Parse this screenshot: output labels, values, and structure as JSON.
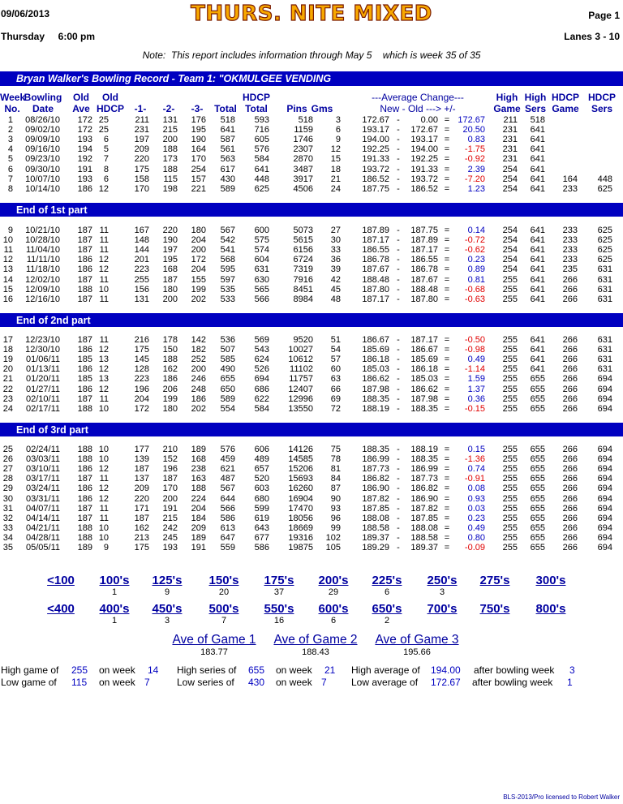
{
  "header": {
    "date": "09/06/2013",
    "title": "THURS. NITE MIXED",
    "page": "Page 1",
    "day_time": "Thursday     6:00 pm",
    "lanes": "Lanes 3 - 10"
  },
  "note": "Note:  This report includes information through May 5    which is week 35 of 35",
  "record_title": "Bryan Walker's Bowling Record  - Team 1: \"OKMULGEE VENDING",
  "columns": {
    "week": "Week",
    "no": "No.",
    "bowling": "Bowling",
    "date": "Date",
    "old1": "Old",
    "ave": "Ave",
    "old2": "Old",
    "hdcp": "HDCP",
    "g1": "-1-",
    "g2": "-2-",
    "g3": "-3-",
    "total": "Total",
    "hdcp_total_1": "HDCP",
    "hdcp_total_2": "Total",
    "pins": "Pins",
    "gms": "Gms",
    "avg_change_1": "---Average Change---",
    "avg_change_2": "New - Old ---> +/-",
    "high_game_1": "High",
    "high_game_2": "Game",
    "high_sers_1": "High",
    "high_sers_2": "Sers",
    "hdcp_game_1": "HDCP",
    "hdcp_game_2": "Game",
    "hdcp_sers_1": "HDCP",
    "hdcp_sers_2": "Sers"
  },
  "part_labels": [
    "End of 1st part",
    "End of 2nd part",
    "End of 3rd part"
  ],
  "rows": [
    [
      "1",
      "08/26/10",
      "172",
      "25",
      "211",
      "131",
      "176",
      "518",
      "593",
      "518",
      "3",
      "172.67",
      "-",
      "0.00",
      "=",
      "172.67",
      "211",
      "518",
      "",
      ""
    ],
    [
      "2",
      "09/02/10",
      "172",
      "25",
      "231",
      "215",
      "195",
      "641",
      "716",
      "1159",
      "6",
      "193.17",
      "-",
      "172.67",
      "=",
      "20.50",
      "231",
      "641",
      "",
      ""
    ],
    [
      "3",
      "09/09/10",
      "193",
      "6",
      "197",
      "200",
      "190",
      "587",
      "605",
      "1746",
      "9",
      "194.00",
      "-",
      "193.17",
      "=",
      "0.83",
      "231",
      "641",
      "",
      ""
    ],
    [
      "4",
      "09/16/10",
      "194",
      "5",
      "209",
      "188",
      "164",
      "561",
      "576",
      "2307",
      "12",
      "192.25",
      "-",
      "194.00",
      "=",
      "-1.75",
      "231",
      "641",
      "",
      ""
    ],
    [
      "5",
      "09/23/10",
      "192",
      "7",
      "220",
      "173",
      "170",
      "563",
      "584",
      "2870",
      "15",
      "191.33",
      "-",
      "192.25",
      "=",
      "-0.92",
      "231",
      "641",
      "",
      ""
    ],
    [
      "6",
      "09/30/10",
      "191",
      "8",
      "175",
      "188",
      "254",
      "617",
      "641",
      "3487",
      "18",
      "193.72",
      "-",
      "191.33",
      "=",
      "2.39",
      "254",
      "641",
      "",
      ""
    ],
    [
      "7",
      "10/07/10",
      "193",
      "6",
      "158",
      "115",
      "157",
      "430",
      "448",
      "3917",
      "21",
      "186.52",
      "-",
      "193.72",
      "=",
      "-7.20",
      "254",
      "641",
      "164",
      "448"
    ],
    [
      "8",
      "10/14/10",
      "186",
      "12",
      "170",
      "198",
      "221",
      "589",
      "625",
      "4506",
      "24",
      "187.75",
      "-",
      "186.52",
      "=",
      "1.23",
      "254",
      "641",
      "233",
      "625"
    ],
    [
      "9",
      "10/21/10",
      "187",
      "11",
      "167",
      "220",
      "180",
      "567",
      "600",
      "5073",
      "27",
      "187.89",
      "-",
      "187.75",
      "=",
      "0.14",
      "254",
      "641",
      "233",
      "625"
    ],
    [
      "10",
      "10/28/10",
      "187",
      "11",
      "148",
      "190",
      "204",
      "542",
      "575",
      "5615",
      "30",
      "187.17",
      "-",
      "187.89",
      "=",
      "-0.72",
      "254",
      "641",
      "233",
      "625"
    ],
    [
      "11",
      "11/04/10",
      "187",
      "11",
      "144",
      "197",
      "200",
      "541",
      "574",
      "6156",
      "33",
      "186.55",
      "-",
      "187.17",
      "=",
      "-0.62",
      "254",
      "641",
      "233",
      "625"
    ],
    [
      "12",
      "11/11/10",
      "186",
      "12",
      "201",
      "195",
      "172",
      "568",
      "604",
      "6724",
      "36",
      "186.78",
      "-",
      "186.55",
      "=",
      "0.23",
      "254",
      "641",
      "233",
      "625"
    ],
    [
      "13",
      "11/18/10",
      "186",
      "12",
      "223",
      "168",
      "204",
      "595",
      "631",
      "7319",
      "39",
      "187.67",
      "-",
      "186.78",
      "=",
      "0.89",
      "254",
      "641",
      "235",
      "631"
    ],
    [
      "14",
      "12/02/10",
      "187",
      "11",
      "255",
      "187",
      "155",
      "597",
      "630",
      "7916",
      "42",
      "188.48",
      "-",
      "187.67",
      "=",
      "0.81",
      "255",
      "641",
      "266",
      "631"
    ],
    [
      "15",
      "12/09/10",
      "188",
      "10",
      "156",
      "180",
      "199",
      "535",
      "565",
      "8451",
      "45",
      "187.80",
      "-",
      "188.48",
      "=",
      "-0.68",
      "255",
      "641",
      "266",
      "631"
    ],
    [
      "16",
      "12/16/10",
      "187",
      "11",
      "131",
      "200",
      "202",
      "533",
      "566",
      "8984",
      "48",
      "187.17",
      "-",
      "187.80",
      "=",
      "-0.63",
      "255",
      "641",
      "266",
      "631"
    ],
    [
      "17",
      "12/23/10",
      "187",
      "11",
      "216",
      "178",
      "142",
      "536",
      "569",
      "9520",
      "51",
      "186.67",
      "-",
      "187.17",
      "=",
      "-0.50",
      "255",
      "641",
      "266",
      "631"
    ],
    [
      "18",
      "12/30/10",
      "186",
      "12",
      "175",
      "150",
      "182",
      "507",
      "543",
      "10027",
      "54",
      "185.69",
      "-",
      "186.67",
      "=",
      "-0.98",
      "255",
      "641",
      "266",
      "631"
    ],
    [
      "19",
      "01/06/11",
      "185",
      "13",
      "145",
      "188",
      "252",
      "585",
      "624",
      "10612",
      "57",
      "186.18",
      "-",
      "185.69",
      "=",
      "0.49",
      "255",
      "641",
      "266",
      "631"
    ],
    [
      "20",
      "01/13/11",
      "186",
      "12",
      "128",
      "162",
      "200",
      "490",
      "526",
      "11102",
      "60",
      "185.03",
      "-",
      "186.18",
      "=",
      "-1.14",
      "255",
      "641",
      "266",
      "631"
    ],
    [
      "21",
      "01/20/11",
      "185",
      "13",
      "223",
      "186",
      "246",
      "655",
      "694",
      "11757",
      "63",
      "186.62",
      "-",
      "185.03",
      "=",
      "1.59",
      "255",
      "655",
      "266",
      "694"
    ],
    [
      "22",
      "01/27/11",
      "186",
      "12",
      "196",
      "206",
      "248",
      "650",
      "686",
      "12407",
      "66",
      "187.98",
      "-",
      "186.62",
      "=",
      "1.37",
      "255",
      "655",
      "266",
      "694"
    ],
    [
      "23",
      "02/10/11",
      "187",
      "11",
      "204",
      "199",
      "186",
      "589",
      "622",
      "12996",
      "69",
      "188.35",
      "-",
      "187.98",
      "=",
      "0.36",
      "255",
      "655",
      "266",
      "694"
    ],
    [
      "24",
      "02/17/11",
      "188",
      "10",
      "172",
      "180",
      "202",
      "554",
      "584",
      "13550",
      "72",
      "188.19",
      "-",
      "188.35",
      "=",
      "-0.15",
      "255",
      "655",
      "266",
      "694"
    ],
    [
      "25",
      "02/24/11",
      "188",
      "10",
      "177",
      "210",
      "189",
      "576",
      "606",
      "14126",
      "75",
      "188.35",
      "-",
      "188.19",
      "=",
      "0.15",
      "255",
      "655",
      "266",
      "694"
    ],
    [
      "26",
      "03/03/11",
      "188",
      "10",
      "139",
      "152",
      "168",
      "459",
      "489",
      "14585",
      "78",
      "186.99",
      "-",
      "188.35",
      "=",
      "-1.36",
      "255",
      "655",
      "266",
      "694"
    ],
    [
      "27",
      "03/10/11",
      "186",
      "12",
      "187",
      "196",
      "238",
      "621",
      "657",
      "15206",
      "81",
      "187.73",
      "-",
      "186.99",
      "=",
      "0.74",
      "255",
      "655",
      "266",
      "694"
    ],
    [
      "28",
      "03/17/11",
      "187",
      "11",
      "137",
      "187",
      "163",
      "487",
      "520",
      "15693",
      "84",
      "186.82",
      "-",
      "187.73",
      "=",
      "-0.91",
      "255",
      "655",
      "266",
      "694"
    ],
    [
      "29",
      "03/24/11",
      "186",
      "12",
      "209",
      "170",
      "188",
      "567",
      "603",
      "16260",
      "87",
      "186.90",
      "-",
      "186.82",
      "=",
      "0.08",
      "255",
      "655",
      "266",
      "694"
    ],
    [
      "30",
      "03/31/11",
      "186",
      "12",
      "220",
      "200",
      "224",
      "644",
      "680",
      "16904",
      "90",
      "187.82",
      "-",
      "186.90",
      "=",
      "0.93",
      "255",
      "655",
      "266",
      "694"
    ],
    [
      "31",
      "04/07/11",
      "187",
      "11",
      "171",
      "191",
      "204",
      "566",
      "599",
      "17470",
      "93",
      "187.85",
      "-",
      "187.82",
      "=",
      "0.03",
      "255",
      "655",
      "266",
      "694"
    ],
    [
      "32",
      "04/14/11",
      "187",
      "11",
      "187",
      "215",
      "184",
      "586",
      "619",
      "18056",
      "96",
      "188.08",
      "-",
      "187.85",
      "=",
      "0.23",
      "255",
      "655",
      "266",
      "694"
    ],
    [
      "33",
      "04/21/11",
      "188",
      "10",
      "162",
      "242",
      "209",
      "613",
      "643",
      "18669",
      "99",
      "188.58",
      "-",
      "188.08",
      "=",
      "0.49",
      "255",
      "655",
      "266",
      "694"
    ],
    [
      "34",
      "04/28/11",
      "188",
      "10",
      "213",
      "245",
      "189",
      "647",
      "677",
      "19316",
      "102",
      "189.37",
      "-",
      "188.58",
      "=",
      "0.80",
      "255",
      "655",
      "266",
      "694"
    ],
    [
      "35",
      "05/05/11",
      "189",
      "9",
      "175",
      "193",
      "191",
      "559",
      "586",
      "19875",
      "105",
      "189.29",
      "-",
      "189.37",
      "=",
      "-0.09",
      "255",
      "655",
      "266",
      "694"
    ]
  ],
  "histogram_row1": [
    {
      "label": "<100",
      "count": ""
    },
    {
      "label": "100's",
      "count": "1"
    },
    {
      "label": "125's",
      "count": "9"
    },
    {
      "label": "150's",
      "count": "20"
    },
    {
      "label": "175's",
      "count": "37"
    },
    {
      "label": "200's",
      "count": "29"
    },
    {
      "label": "225's",
      "count": "6"
    },
    {
      "label": "250's",
      "count": "3"
    },
    {
      "label": "275's",
      "count": ""
    },
    {
      "label": "300's",
      "count": ""
    }
  ],
  "histogram_row2": [
    {
      "label": "<400",
      "count": ""
    },
    {
      "label": "400's",
      "count": "1"
    },
    {
      "label": "450's",
      "count": "3"
    },
    {
      "label": "500's",
      "count": "7"
    },
    {
      "label": "550's",
      "count": "16"
    },
    {
      "label": "600's",
      "count": "6"
    },
    {
      "label": "650's",
      "count": "2"
    },
    {
      "label": "700's",
      "count": ""
    },
    {
      "label": "750's",
      "count": ""
    },
    {
      "label": "800's",
      "count": ""
    }
  ],
  "game_averages": [
    {
      "label": "Ave of Game 1",
      "value": "183.77"
    },
    {
      "label": "Ave of Game 2",
      "value": "188.43"
    },
    {
      "label": "Ave of Game 3",
      "value": "195.66"
    }
  ],
  "summary": {
    "high_game_label": "High game of",
    "high_game": "255",
    "high_game_week_label": "on week",
    "high_game_week": "14",
    "low_game_label": "Low game of",
    "low_game": "115",
    "low_game_week_label": "on week",
    "low_game_week": "7",
    "high_series_label": "High series of",
    "high_series": "655",
    "high_series_week_label": "on week",
    "high_series_week": "21",
    "low_series_label": "Low series of",
    "low_series": "430",
    "low_series_week_label": "on week",
    "low_series_week": "7",
    "high_avg_label": "High average of",
    "high_avg": "194.00",
    "high_avg_after": "after bowling week",
    "high_avg_week": "3",
    "low_avg_label": "Low average of",
    "low_avg": "172.67",
    "low_avg_after": "after bowling week",
    "low_avg_week": "1"
  },
  "footer": "BLS-2013/Pro licensed to Robert Walker",
  "colors": {
    "accent_bar": "#0000c0",
    "title_orange": "#f7a800",
    "negative": "#e00000",
    "positive": "#0000c0"
  }
}
